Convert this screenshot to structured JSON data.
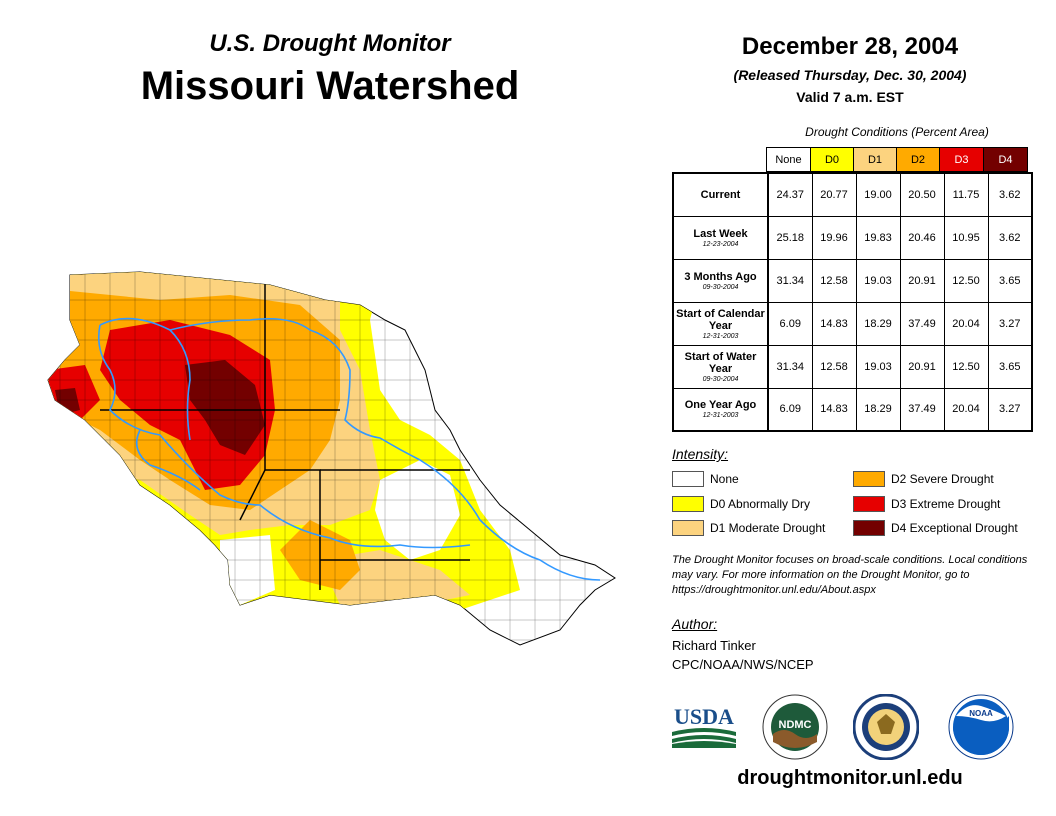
{
  "title": {
    "subtitle": "U.S. Drought Monitor",
    "region": "Missouri Watershed"
  },
  "date": "December 28, 2004",
  "released": "(Released Thursday, Dec. 30, 2004)",
  "valid": "Valid 7 a.m. EST",
  "table": {
    "caption": "Drought Conditions (Percent Area)",
    "columns": [
      "None",
      "D0",
      "D1",
      "D2",
      "D3",
      "D4"
    ],
    "rows": [
      {
        "label": "Current",
        "date": "",
        "values": [
          "24.37",
          "20.77",
          "19.00",
          "20.50",
          "11.75",
          "3.62"
        ]
      },
      {
        "label": "Last Week",
        "date": "12-23-2004",
        "values": [
          "25.18",
          "19.96",
          "19.83",
          "20.46",
          "10.95",
          "3.62"
        ]
      },
      {
        "label": "3 Months Ago",
        "date": "09-30-2004",
        "values": [
          "31.34",
          "12.58",
          "19.03",
          "20.91",
          "12.50",
          "3.65"
        ]
      },
      {
        "label": "Start of Calendar Year",
        "date": "12-31-2003",
        "values": [
          "6.09",
          "14.83",
          "18.29",
          "37.49",
          "20.04",
          "3.27"
        ]
      },
      {
        "label": "Start of Water Year",
        "date": "09-30-2004",
        "values": [
          "31.34",
          "12.58",
          "19.03",
          "20.91",
          "12.50",
          "3.65"
        ]
      },
      {
        "label": "One Year Ago",
        "date": "12-31-2003",
        "values": [
          "6.09",
          "14.83",
          "18.29",
          "37.49",
          "20.04",
          "3.27"
        ]
      }
    ]
  },
  "legend": {
    "title": "Intensity:",
    "items": [
      {
        "label": "None",
        "color": "#ffffff"
      },
      {
        "label": "D0 Abnormally Dry",
        "color": "#ffff00"
      },
      {
        "label": "D1 Moderate Drought",
        "color": "#fcd37f"
      },
      {
        "label": "D2 Severe Drought",
        "color": "#ffaa00"
      },
      {
        "label": "D3 Extreme Drought",
        "color": "#e60000"
      },
      {
        "label": "D4 Exceptional Drought",
        "color": "#730000"
      }
    ]
  },
  "note": "The Drought Monitor focuses on broad-scale conditions. Local conditions may vary. For more information on the Drought Monitor, go to https://droughtmonitor.unl.edu/About.aspx",
  "author": {
    "title": "Author:",
    "name": "Richard Tinker",
    "org": "CPC/NOAA/NWS/NCEP"
  },
  "logos": {
    "usda": "USDA",
    "ndmc": "NDMC",
    "noaa": "NOAA"
  },
  "website": "droughtmonitor.unl.edu",
  "colors": {
    "none": "#ffffff",
    "d0": "#ffff00",
    "d1": "#fcd37f",
    "d2": "#ffaa00",
    "d3": "#e60000",
    "d4": "#730000",
    "river": "#3399ff",
    "d0_header": "#ffff00",
    "d1_header": "#fcd37f",
    "d2_header": "#ffaa00",
    "d3_header": "#e60000",
    "d4_header": "#730000"
  }
}
